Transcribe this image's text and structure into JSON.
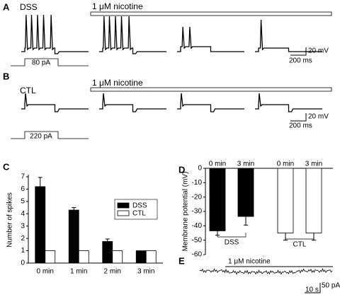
{
  "panel_labels": [
    "A",
    "B",
    "C",
    "D",
    "E"
  ],
  "panel_a": {
    "group": "DSS",
    "treatment": "1 μM nicotine",
    "stimulus": "80 pA",
    "scale_v": "20 mV",
    "scale_t": "200 ms"
  },
  "panel_b": {
    "group": "CTL",
    "treatment": "1 μM nicotine",
    "stimulus": "220 pA",
    "scale_v": "20 mV",
    "scale_t": "200 ms"
  },
  "panel_e": {
    "treatment": "1 μM nicotine",
    "scale_t": "10 s",
    "scale_i": "50 pA"
  },
  "chart_data": [
    {
      "type": "bar",
      "ylabel": "Number of spikes",
      "categories": [
        "0 min",
        "1 min",
        "2 min",
        "3 min"
      ],
      "series": [
        {
          "name": "DSS",
          "color": "#000000",
          "values": [
            6.2,
            4.3,
            1.75,
            1.0
          ],
          "errors": [
            0.75,
            0.2,
            0.2,
            0
          ]
        },
        {
          "name": "CTL",
          "color": "#ffffff",
          "values": [
            1,
            1,
            1,
            1
          ],
          "errors": [
            0,
            0,
            0,
            0
          ]
        }
      ],
      "ylim": [
        0,
        7
      ],
      "yticks": [
        0,
        1,
        2,
        3,
        4,
        5,
        6,
        7
      ],
      "legend": "upper right"
    },
    {
      "type": "bar",
      "ylabel": "Membrane potential (mV)",
      "categories": [
        "0 min",
        "3 min",
        "0 min",
        "3 min"
      ],
      "groups": [
        "DSS",
        "CTL"
      ],
      "series": [
        {
          "name": "DSS",
          "color": "#000000",
          "values": [
            -43.5,
            -33.5,
            null,
            null
          ],
          "errors": [
            3,
            6,
            null,
            null
          ]
        },
        {
          "name": "CTL",
          "color": "#ffffff",
          "values": [
            null,
            null,
            -45,
            -45
          ],
          "errors": [
            null,
            null,
            5,
            5
          ]
        }
      ],
      "ylim": [
        -60,
        0
      ],
      "yticks": [
        0,
        -10,
        -20,
        -30,
        -40,
        -50,
        -60
      ]
    }
  ]
}
